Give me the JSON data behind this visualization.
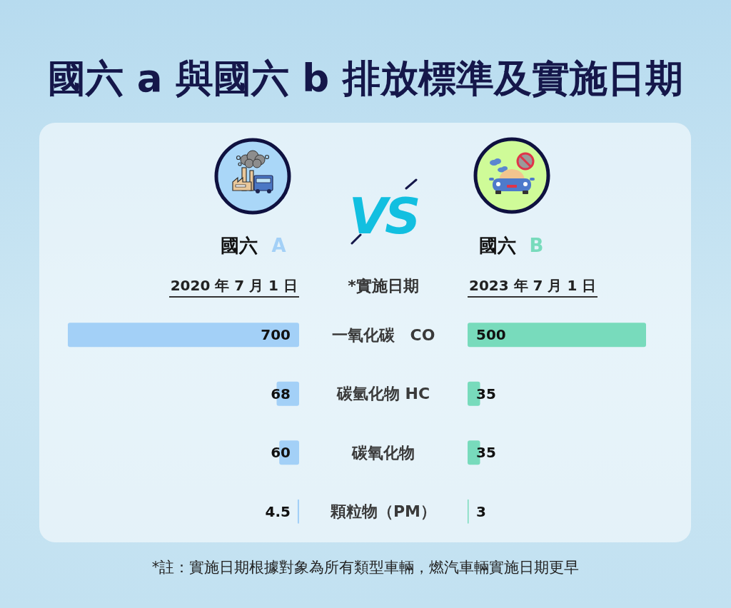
{
  "chart_data": [
    {
      "type": "bar",
      "orientation": "horizontal",
      "title": "國六 a 與國六 b 排放標準及實施日期",
      "categories": [
        "一氧化碳　CO",
        "碳氫化物 HC",
        "碳氧化物",
        "顆粒物（PM）"
      ],
      "series": [
        {
          "name": "國六 A",
          "color": "#a3d0f7",
          "values": [
            700,
            68,
            60,
            4.5
          ]
        }
      ],
      "xlim": [
        700,
        0
      ],
      "data_labels": true,
      "tick_labels": false,
      "annotations": [
        "2020 年 7 月 1 日",
        "VS",
        "*註：實施日期根據對象為所有類型車輛，燃汽車輛實施日期更早"
      ]
    },
    {
      "type": "bar",
      "orientation": "horizontal",
      "ylabel": "*實施日期",
      "categories": [
        "一氧化碳　CO",
        "碳氫化物 HC",
        "碳氧化物",
        "顆粒物（PM）"
      ],
      "series": [
        {
          "name": "國六 B",
          "color": "#78dbbc",
          "values": [
            500,
            35,
            35,
            3
          ]
        }
      ],
      "xlim": [
        0,
        500
      ],
      "data_labels": true,
      "tick_labels": "y",
      "annotations": [
        "2023 年 7 月 1 日"
      ]
    }
  ]
}
